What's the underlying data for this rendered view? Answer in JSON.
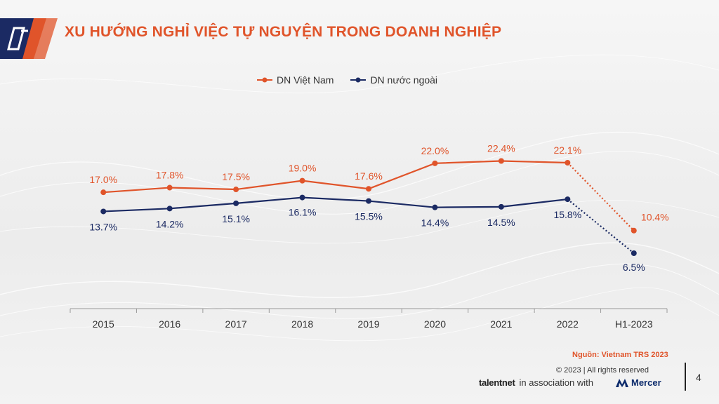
{
  "header": {
    "title": "XU HƯỚNG NGHỈ VIỆC TỰ NGUYỆN TRONG DOANH NGHIỆP"
  },
  "colors": {
    "accent": "#e0542a",
    "navy": "#1b2a63"
  },
  "chart_data": {
    "type": "line",
    "categories": [
      "2015",
      "2016",
      "2017",
      "2018",
      "2019",
      "2020",
      "2021",
      "2022",
      "H1-2023"
    ],
    "series": [
      {
        "name": "DN Việt Nam",
        "color": "#e0542a",
        "values": [
          17.0,
          17.8,
          17.5,
          19.0,
          17.6,
          22.0,
          22.4,
          22.1,
          10.4
        ],
        "labels": [
          "17.0%",
          "17.8%",
          "17.5%",
          "19.0%",
          "17.6%",
          "22.0%",
          "22.4%",
          "22.1%",
          "10.4%"
        ]
      },
      {
        "name": "DN nước ngoài",
        "color": "#1b2a63",
        "values": [
          13.7,
          14.2,
          15.1,
          16.1,
          15.5,
          14.4,
          14.5,
          15.8,
          6.5
        ],
        "labels": [
          "13.7%",
          "14.2%",
          "15.1%",
          "16.1%",
          "15.5%",
          "14.4%",
          "14.5%",
          "15.8%",
          "6.5%"
        ]
      }
    ],
    "last_segment_style": "dotted",
    "legend_position": "top-center",
    "grid": false
  },
  "footer": {
    "source": "Nguồn: Vietnam TRS 2023",
    "copyright": "© 2023  | All rights reserved",
    "brand_talentnet": "talentnet",
    "association": "in association with",
    "brand_mercer": "Mercer",
    "page_number": "4"
  }
}
